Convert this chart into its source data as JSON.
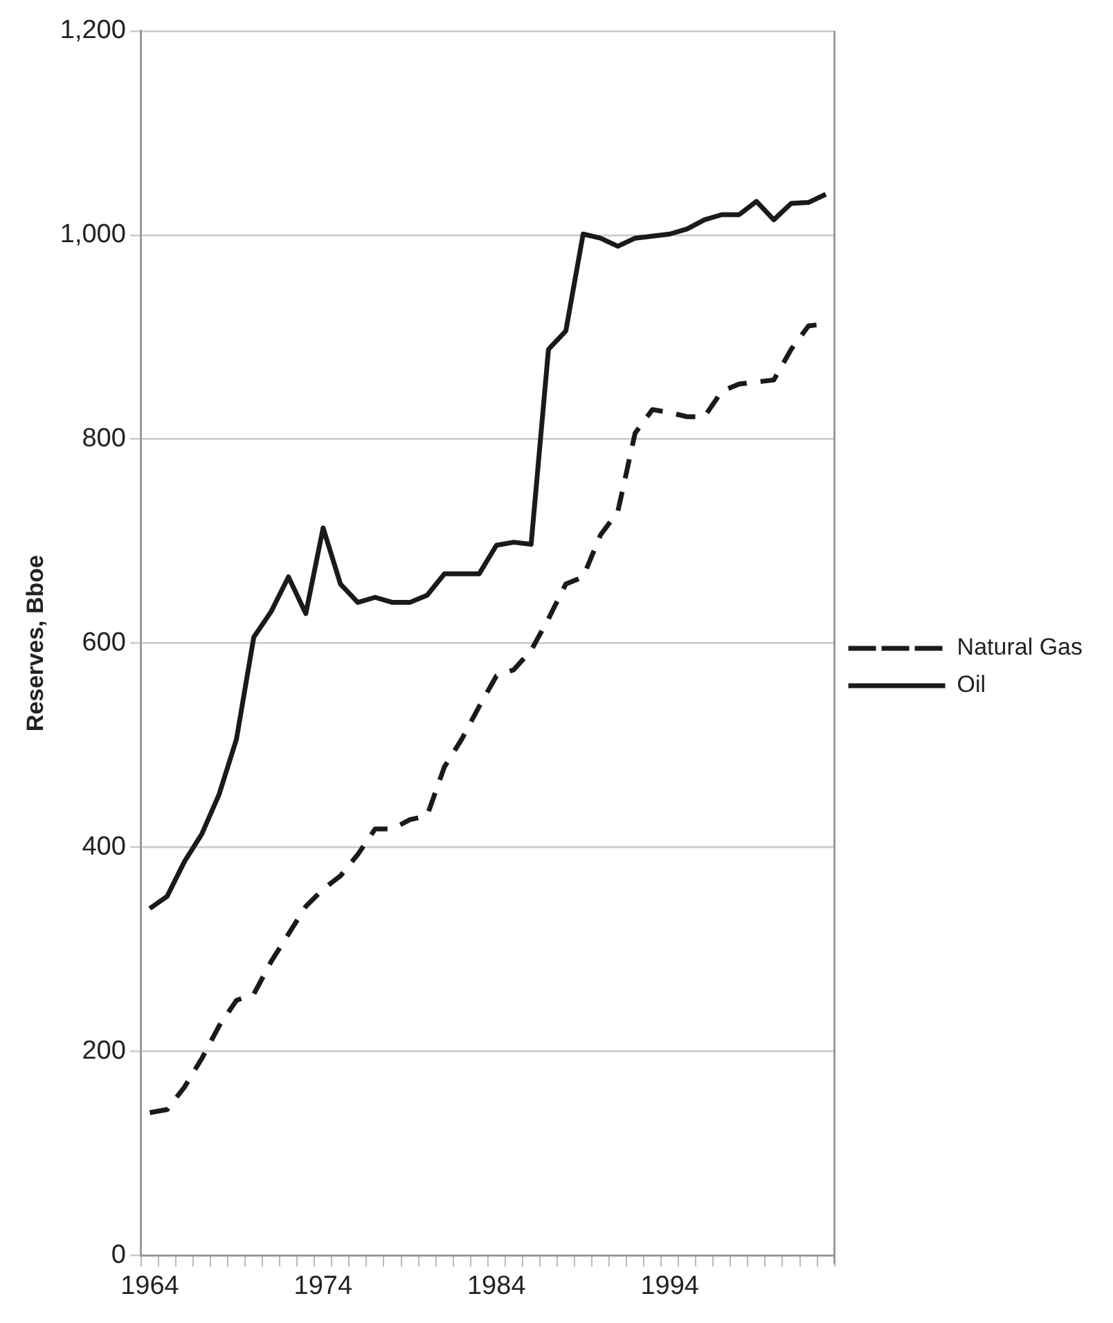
{
  "chart_data": {
    "type": "line",
    "ylabel": "Reserves, Bboe",
    "categories": [
      "1964",
      null,
      null,
      null,
      null,
      null,
      null,
      null,
      null,
      null,
      "1974",
      null,
      null,
      null,
      null,
      null,
      null,
      null,
      null,
      null,
      "1984",
      null,
      null,
      null,
      null,
      null,
      null,
      null,
      null,
      null,
      "1994",
      null,
      null,
      null,
      null,
      null,
      null,
      null,
      null,
      null
    ],
    "series": [
      {
        "name": "Natural Gas",
        "color": "#1a1a1a",
        "line_style": "dashed",
        "values": [
          140,
          143,
          165,
          193,
          225,
          250,
          256,
          288,
          315,
          342,
          359,
          372,
          393,
          418,
          418,
          427,
          431,
          479,
          506,
          538,
          568,
          574,
          593,
          624,
          658,
          665,
          706,
          729,
          806,
          829,
          826,
          822,
          822,
          847,
          854,
          856,
          858,
          888,
          911,
          913
        ]
      },
      {
        "name": "Oil",
        "color": "#1a1a1a",
        "line_style": "solid",
        "values": [
          340,
          352,
          386,
          413,
          452,
          506,
          606,
          631,
          665,
          629,
          713,
          658,
          640,
          645,
          640,
          640,
          647,
          668,
          668,
          668,
          696,
          699,
          697,
          888,
          906,
          1001,
          997,
          989,
          997,
          999,
          1001,
          1006,
          1015,
          1020,
          1020,
          1033,
          1015,
          1031,
          1032,
          1040
        ]
      }
    ],
    "ylim": [
      0,
      1200
    ],
    "yticks": [
      0,
      200,
      400,
      600,
      800,
      {
        "value": 1000,
        "label": "1,000"
      },
      {
        "value": 1200,
        "label": "1,200"
      }
    ],
    "grid": "y",
    "legend": "right",
    "marker": "none"
  }
}
